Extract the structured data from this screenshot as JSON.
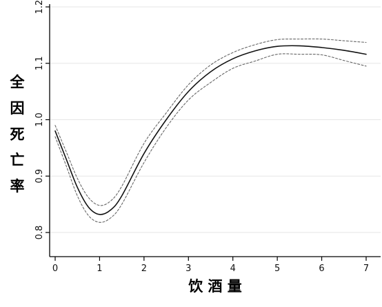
{
  "chart_data": {
    "type": "line",
    "xlabel": "饮 酒 量",
    "ylabel_chars": [
      "全",
      "因",
      "死",
      "亡",
      "率"
    ],
    "xlim": [
      0,
      7
    ],
    "ylim": [
      0.78,
      1.2
    ],
    "x_ticks": [
      0,
      1,
      2,
      3,
      4,
      5,
      6,
      7
    ],
    "x_tick_labels": [
      "0",
      "1",
      "2",
      "3",
      "4",
      "5",
      "6",
      "7"
    ],
    "y_ticks": [
      0.8,
      0.9,
      1.0,
      1.1,
      1.2
    ],
    "y_tick_labels": [
      "0.8",
      "0.9",
      "1.0",
      "1.1",
      "1.2"
    ],
    "grid": "horizontal",
    "legend": "none",
    "series": [
      {
        "role": "estimate",
        "style": "solid",
        "color": "#111111",
        "x": [
          0,
          0.25,
          0.5,
          0.75,
          1.0,
          1.25,
          1.5,
          2.0,
          2.5,
          3.0,
          3.5,
          4.0,
          4.5,
          5.0,
          5.5,
          6.0,
          6.5,
          7.0
        ],
        "y": [
          0.98,
          0.93,
          0.88,
          0.845,
          0.832,
          0.84,
          0.865,
          0.94,
          1.0,
          1.05,
          1.085,
          1.108,
          1.122,
          1.13,
          1.131,
          1.128,
          1.123,
          1.116
        ]
      },
      {
        "role": "upper-ci",
        "style": "dotted",
        "color": "#666666",
        "x": [
          0,
          0.25,
          0.5,
          0.75,
          1.0,
          1.25,
          1.5,
          2.0,
          2.5,
          3.0,
          3.5,
          4.0,
          4.5,
          5.0,
          5.5,
          6.0,
          6.5,
          7.0
        ],
        "y": [
          0.99,
          0.943,
          0.896,
          0.862,
          0.848,
          0.856,
          0.882,
          0.958,
          1.012,
          1.062,
          1.097,
          1.119,
          1.133,
          1.142,
          1.143,
          1.143,
          1.14,
          1.137
        ]
      },
      {
        "role": "lower-ci",
        "style": "dotted",
        "color": "#666666",
        "x": [
          0,
          0.25,
          0.5,
          0.75,
          1.0,
          1.25,
          1.5,
          2.0,
          2.5,
          3.0,
          3.5,
          4.0,
          4.5,
          5.0,
          5.5,
          6.0,
          6.5,
          7.0
        ],
        "y": [
          0.97,
          0.918,
          0.865,
          0.83,
          0.818,
          0.826,
          0.85,
          0.924,
          0.986,
          1.035,
          1.066,
          1.091,
          1.104,
          1.116,
          1.116,
          1.115,
          1.105,
          1.095
        ]
      }
    ]
  }
}
